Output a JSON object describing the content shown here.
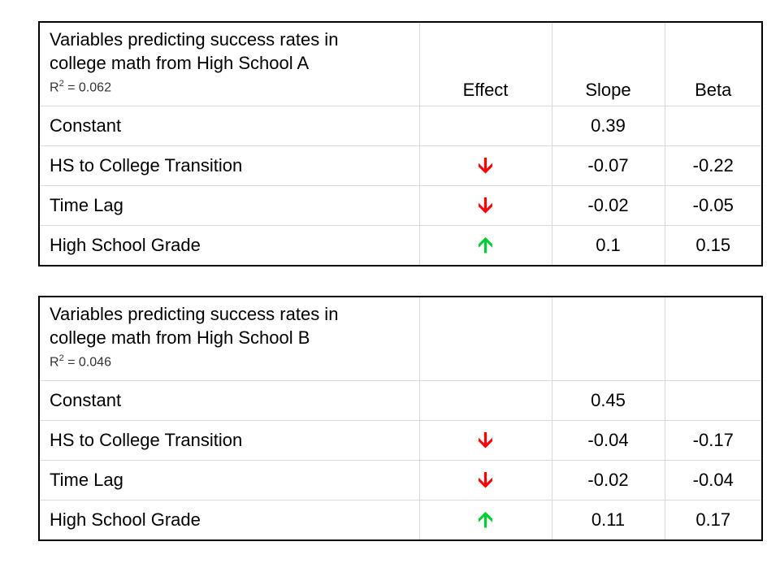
{
  "tables": [
    {
      "title_line1": "Variables predicting success rates in",
      "title_line2": "college math from High School A",
      "rsq_prefix": "R",
      "rsq_exp": "2",
      "rsq_value": " = 0.062",
      "headers": {
        "effect": "Effect",
        "slope": "Slope",
        "beta": "Beta"
      },
      "rows": [
        {
          "label": "Constant",
          "effect": "",
          "slope": "0.39",
          "beta": ""
        },
        {
          "label": "HS to College Transition",
          "effect": "down-arrow-icon",
          "slope": "-0.07",
          "beta": "-0.22"
        },
        {
          "label": "Time Lag",
          "effect": "down-arrow-icon",
          "slope": "-0.02",
          "beta": "-0.05"
        },
        {
          "label": "High School Grade",
          "effect": "up-arrow-icon",
          "slope": "0.1",
          "beta": "0.15"
        }
      ]
    },
    {
      "title_line1": "Variables predicting success rates in",
      "title_line2": "college math from High School B",
      "rsq_prefix": "R",
      "rsq_exp": "2",
      "rsq_value": " = 0.046",
      "headers": {
        "effect": "",
        "slope": "",
        "beta": ""
      },
      "rows": [
        {
          "label": "Constant",
          "effect": "",
          "slope": "0.45",
          "beta": ""
        },
        {
          "label": "HS to College Transition",
          "effect": "down-arrow-icon",
          "slope": "-0.04",
          "beta": "-0.17"
        },
        {
          "label": "Time Lag",
          "effect": "down-arrow-icon",
          "slope": "-0.02",
          "beta": "-0.04"
        },
        {
          "label": "High School Grade",
          "effect": "up-arrow-icon",
          "slope": "0.11",
          "beta": "0.17"
        }
      ]
    }
  ],
  "colors": {
    "down_arrow": "#ff0000",
    "up_arrow": "#00cc33",
    "border": "#000000"
  }
}
